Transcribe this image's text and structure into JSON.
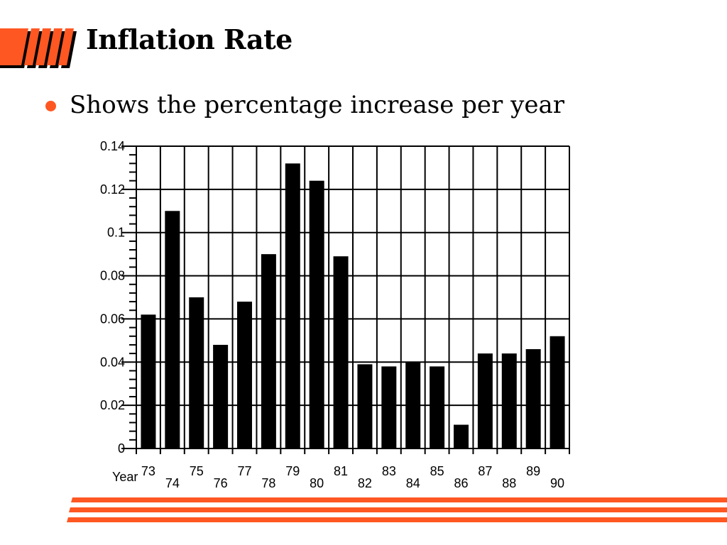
{
  "slide": {
    "title": "Inflation Rate",
    "bullet": "Shows the percentage increase per year",
    "accent_color": "#ff5722",
    "logo_icon": "orange-slanted-stripes-logo"
  },
  "chart_data": {
    "type": "bar",
    "title": "",
    "xlabel": "Year",
    "ylabel": "",
    "categories": [
      "73",
      "74",
      "75",
      "76",
      "77",
      "78",
      "79",
      "80",
      "81",
      "82",
      "83",
      "84",
      "85",
      "86",
      "87",
      "88",
      "89",
      "90"
    ],
    "values": [
      0.062,
      0.11,
      0.07,
      0.048,
      0.068,
      0.09,
      0.132,
      0.124,
      0.089,
      0.039,
      0.038,
      0.04,
      0.038,
      0.011,
      0.044,
      0.044,
      0.046,
      0.052
    ],
    "ylim": [
      0,
      0.14
    ],
    "yticks": [
      "0",
      "0.02",
      "0.04",
      "0.06",
      "0.08",
      "0.1",
      "0.12",
      "0.14"
    ],
    "grid": true,
    "legend": "none",
    "bar_color": "#000000"
  }
}
